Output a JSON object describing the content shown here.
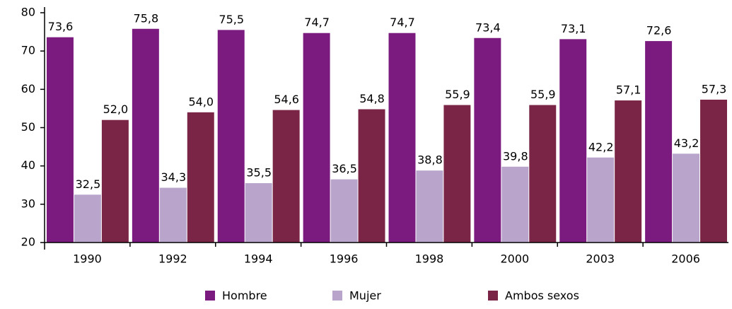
{
  "chart_data": {
    "type": "bar",
    "categories": [
      "1990",
      "1992",
      "1994",
      "1996",
      "1998",
      "2000",
      "2003",
      "2006"
    ],
    "series": [
      {
        "name": "Hombre",
        "color": "#7b1b80",
        "values": [
          73.6,
          75.8,
          75.5,
          74.7,
          74.7,
          73.4,
          73.1,
          72.6
        ],
        "value_labels": [
          "73,6",
          "75,8",
          "75,5",
          "74,7",
          "74,7",
          "73,4",
          "73,1",
          "72,6"
        ]
      },
      {
        "name": "Mujer",
        "color": "#b9a5cc",
        "values": [
          32.5,
          34.3,
          35.5,
          36.5,
          38.8,
          39.8,
          42.2,
          43.2
        ],
        "value_labels": [
          "32,5",
          "34,3",
          "35,5",
          "36,5",
          "38,8",
          "39,8",
          "42,2",
          "43,2"
        ]
      },
      {
        "name": "Ambos sexos",
        "color": "#7a2545",
        "values": [
          52.0,
          54.0,
          54.6,
          54.8,
          55.9,
          55.9,
          57.1,
          57.3
        ],
        "value_labels": [
          "52,0",
          "54,0",
          "54,6",
          "54,8",
          "55,9",
          "55,9",
          "57,1",
          "57,3"
        ]
      }
    ],
    "ylim": [
      20,
      80
    ],
    "yticks": [
      20,
      30,
      40,
      50,
      60,
      70,
      80
    ],
    "grid": false,
    "legend": "bottom"
  }
}
